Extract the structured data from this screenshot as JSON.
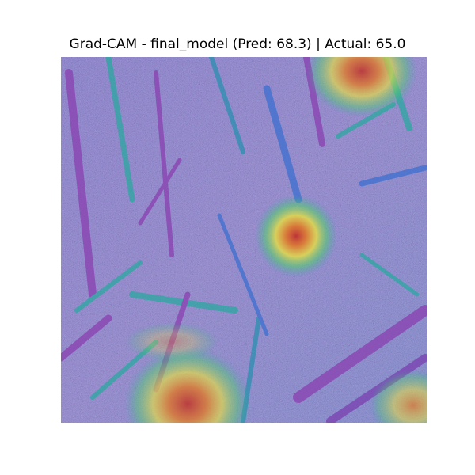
{
  "figure": {
    "title": "Grad-CAM - final_model (Pred: 68.3) | Actual: 65.0"
  },
  "image": {
    "description_icon": "gradcam-heatmap-overlay",
    "colors": {
      "base_blue": "#4a4fa8",
      "purple": "#8a3fb0",
      "teal": "#2aa8a0",
      "green": "#4fd06a",
      "yellow": "#e8e040",
      "orange": "#e07a2a",
      "red": "#c03030"
    }
  }
}
